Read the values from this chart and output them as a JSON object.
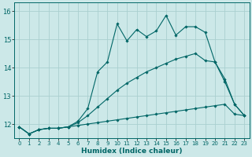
{
  "xlabel": "Humidex (Indice chaleur)",
  "background_color": "#cce8e8",
  "grid_color": "#aacfcf",
  "line_color": "#006666",
  "xlim": [
    -0.5,
    23.5
  ],
  "ylim": [
    11.5,
    16.3
  ],
  "yticks": [
    12,
    13,
    14,
    15,
    16
  ],
  "xticks": [
    0,
    1,
    2,
    3,
    4,
    5,
    6,
    7,
    8,
    9,
    10,
    11,
    12,
    13,
    14,
    15,
    16,
    17,
    18,
    19,
    20,
    21,
    22,
    23
  ],
  "line_bottom_x": [
    0,
    1,
    2,
    3,
    4,
    5,
    6,
    7,
    8,
    9,
    10,
    11,
    12,
    13,
    14,
    15,
    16,
    17,
    18,
    19,
    20,
    21,
    22,
    23
  ],
  "line_bottom_y": [
    11.9,
    11.65,
    11.8,
    11.85,
    11.85,
    11.9,
    11.95,
    12.0,
    12.05,
    12.1,
    12.15,
    12.2,
    12.25,
    12.3,
    12.35,
    12.4,
    12.45,
    12.5,
    12.55,
    12.6,
    12.65,
    12.7,
    12.35,
    12.3
  ],
  "line_mid_x": [
    0,
    1,
    2,
    3,
    4,
    5,
    6,
    7,
    8,
    9,
    10,
    11,
    12,
    13,
    14,
    15,
    16,
    17,
    18,
    19,
    20,
    21,
    22,
    23
  ],
  "line_mid_y": [
    11.9,
    11.65,
    11.8,
    11.85,
    11.85,
    11.9,
    12.05,
    12.3,
    12.6,
    12.9,
    13.2,
    13.45,
    13.65,
    13.85,
    14.0,
    14.15,
    14.3,
    14.4,
    14.5,
    14.25,
    14.2,
    13.6,
    12.7,
    12.3
  ],
  "line_top_x": [
    0,
    1,
    2,
    3,
    4,
    5,
    6,
    7,
    8,
    9,
    10,
    11,
    12,
    13,
    14,
    15,
    16,
    17,
    18,
    19,
    20,
    21,
    22,
    23
  ],
  "line_top_y": [
    11.9,
    11.65,
    11.8,
    11.85,
    11.85,
    11.9,
    12.1,
    12.55,
    13.85,
    14.2,
    15.55,
    14.95,
    15.35,
    15.1,
    15.3,
    15.85,
    15.15,
    15.45,
    15.45,
    15.25,
    14.2,
    13.5,
    12.7,
    12.3
  ],
  "marker": "D",
  "markersize": 1.8,
  "linewidth": 0.8
}
